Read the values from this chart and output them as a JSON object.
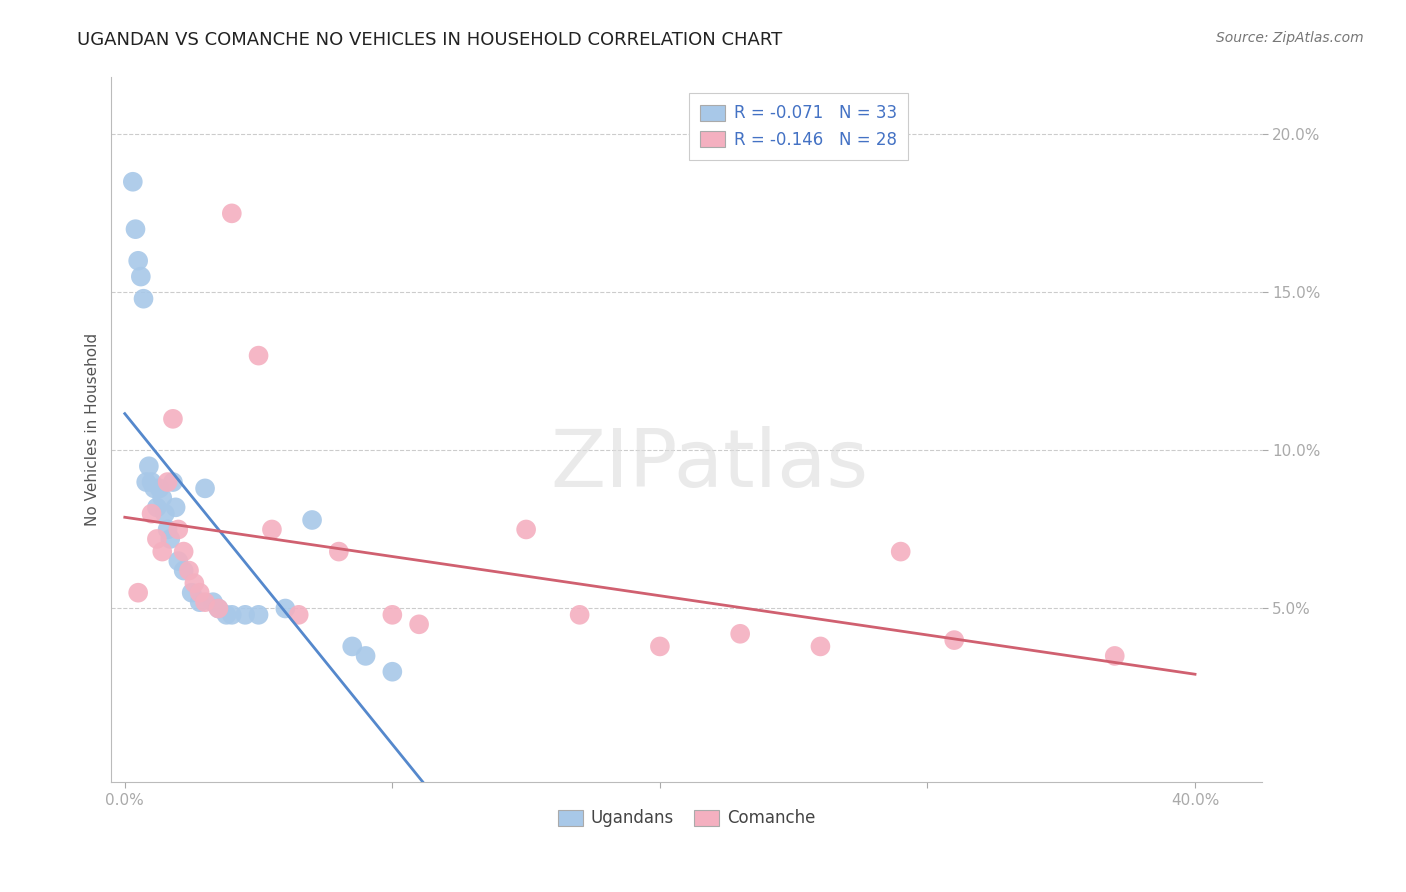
{
  "title": "UGANDAN VS COMANCHE NO VEHICLES IN HOUSEHOLD CORRELATION CHART",
  "source": "Source: ZipAtlas.com",
  "ylabel": "No Vehicles in Household",
  "ytick_labels": [
    "5.0%",
    "10.0%",
    "15.0%",
    "20.0%"
  ],
  "ytick_values": [
    0.05,
    0.1,
    0.15,
    0.2
  ],
  "xtick_values": [
    0.0,
    0.1,
    0.2,
    0.3,
    0.4
  ],
  "xmin": -0.005,
  "xmax": 0.425,
  "ymin": -0.005,
  "ymax": 0.218,
  "ugandan_R": -0.071,
  "ugandan_N": 33,
  "comanche_R": -0.146,
  "comanche_N": 28,
  "ugandan_color": "#a8c8e8",
  "comanche_color": "#f4b0c0",
  "ugandan_line_color": "#5588cc",
  "comanche_line_color": "#d06070",
  "legend_label_ugandan": "Ugandans",
  "legend_label_comanche": "Comanche",
  "watermark_text": "ZIPatlas",
  "ugandan_x": [
    0.003,
    0.004,
    0.005,
    0.006,
    0.007,
    0.008,
    0.009,
    0.01,
    0.011,
    0.012,
    0.013,
    0.014,
    0.015,
    0.016,
    0.017,
    0.018,
    0.019,
    0.02,
    0.022,
    0.025,
    0.028,
    0.03,
    0.033,
    0.035,
    0.038,
    0.04,
    0.045,
    0.05,
    0.06,
    0.07,
    0.085,
    0.09,
    0.1
  ],
  "ugandan_y": [
    0.185,
    0.17,
    0.16,
    0.155,
    0.148,
    0.09,
    0.095,
    0.09,
    0.088,
    0.082,
    0.088,
    0.085,
    0.08,
    0.075,
    0.072,
    0.09,
    0.082,
    0.065,
    0.062,
    0.055,
    0.052,
    0.088,
    0.052,
    0.05,
    0.048,
    0.048,
    0.048,
    0.048,
    0.05,
    0.078,
    0.038,
    0.035,
    0.03
  ],
  "comanche_x": [
    0.005,
    0.01,
    0.012,
    0.014,
    0.016,
    0.018,
    0.02,
    0.022,
    0.024,
    0.026,
    0.028,
    0.03,
    0.035,
    0.04,
    0.05,
    0.055,
    0.065,
    0.08,
    0.1,
    0.11,
    0.15,
    0.17,
    0.2,
    0.23,
    0.26,
    0.29,
    0.31,
    0.37
  ],
  "comanche_y": [
    0.055,
    0.08,
    0.072,
    0.068,
    0.09,
    0.11,
    0.075,
    0.068,
    0.062,
    0.058,
    0.055,
    0.052,
    0.05,
    0.175,
    0.13,
    0.075,
    0.048,
    0.068,
    0.048,
    0.045,
    0.075,
    0.048,
    0.038,
    0.042,
    0.038,
    0.068,
    0.04,
    0.035
  ],
  "title_fontsize": 13,
  "axis_label_fontsize": 11,
  "tick_fontsize": 11,
  "legend_fontsize": 12
}
